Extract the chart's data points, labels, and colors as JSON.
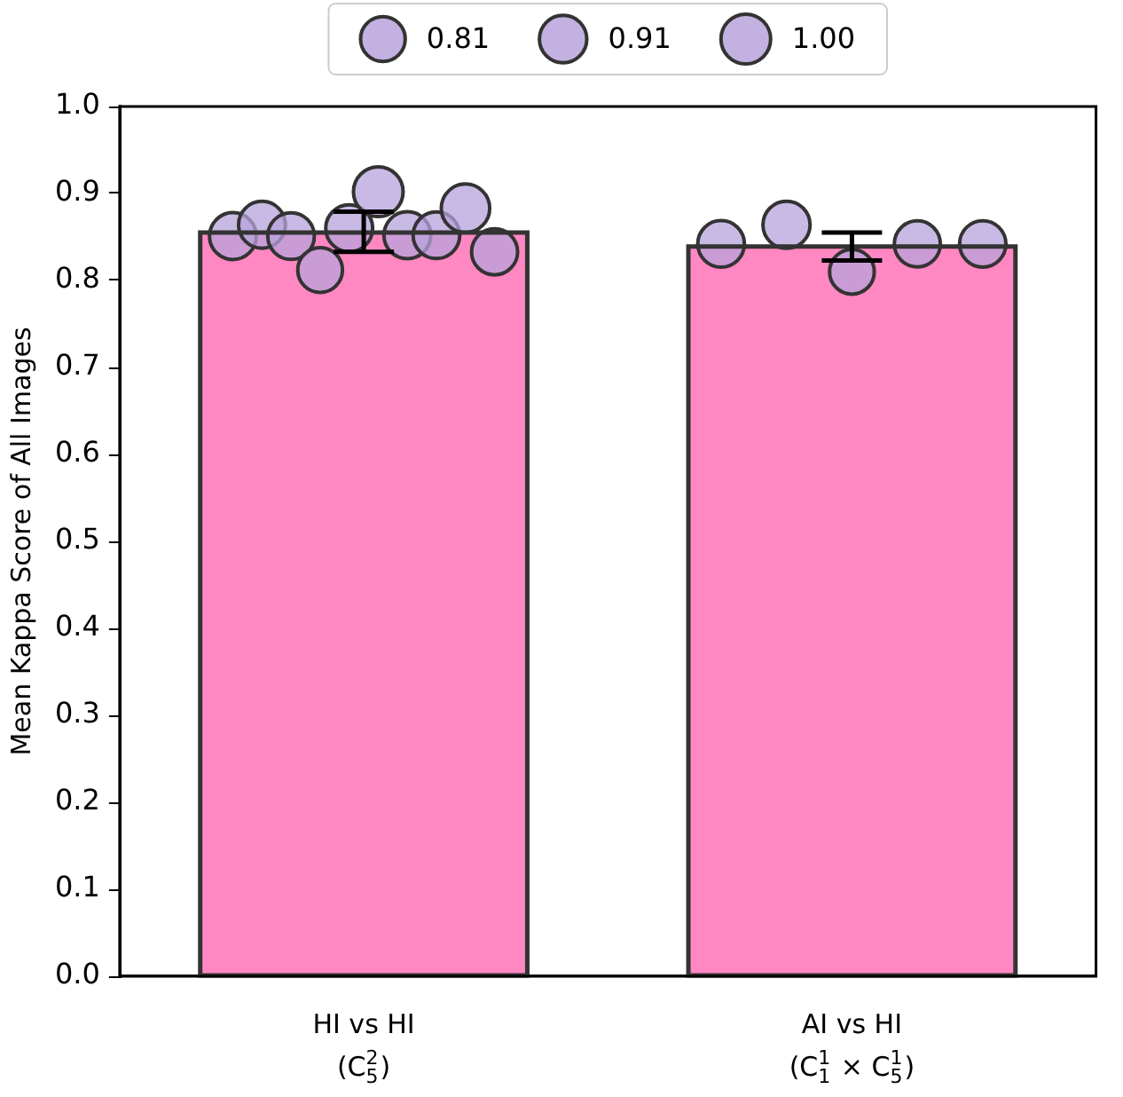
{
  "chart_data": {
    "type": "bar",
    "ylabel": "Mean Kappa Score of All Images",
    "categories": [
      "HI vs HI\n(C$^{2}$$_{5}$)",
      "AI vs HI\n(C$^{1}$$_{1}$ × C$^{1}$$_{5}$)"
    ],
    "values": [
      0.855,
      0.839
    ],
    "color": "#ff88c2",
    "errors": [
      [
        0.833,
        0.879
      ],
      [
        0.823,
        0.855
      ]
    ],
    "ylim": [
      0,
      1
    ],
    "yticks": [
      {
        "value": 0,
        "label": "0.0"
      },
      0.1,
      0.2,
      0.3,
      0.4,
      0.5,
      0.6,
      0.7,
      0.8,
      0.9,
      {
        "value": 1,
        "label": "1.0"
      }
    ],
    "grid": false,
    "series": [
      {
        "type": "scatter",
        "color": "#b7a3dc",
        "marker": "circle",
        "x": [
          "HI vs HI\n(C$^{2}$$_{5}$)",
          "HI vs HI\n(C$^{2}$$_{5}$)",
          "HI vs HI\n(C$^{2}$$_{5}$)",
          "HI vs HI\n(C$^{2}$$_{5}$)",
          "HI vs HI\n(C$^{2}$$_{5}$)",
          "HI vs HI\n(C$^{2}$$_{5}$)",
          "HI vs HI\n(C$^{2}$$_{5}$)",
          "HI vs HI\n(C$^{2}$$_{5}$)",
          "HI vs HI\n(C$^{2}$$_{5}$)",
          "HI vs HI\n(C$^{2}$$_{5}$)",
          "AI vs HI\n(C$^{1}$$_{1}$ × C$^{1}$$_{5}$)",
          "AI vs HI\n(C$^{1}$$_{1}$ × C$^{1}$$_{5}$)",
          "AI vs HI\n(C$^{1}$$_{1}$ × C$^{1}$$_{5}$)",
          "AI vs HI\n(C$^{1}$$_{1}$ × C$^{1}$$_{5}$)",
          "AI vs HI\n(C$^{1}$$_{1}$ × C$^{1}$$_{5}$)"
        ],
        "values": [
          0.851,
          0.864,
          0.851,
          0.812,
          0.86,
          0.902,
          0.852,
          0.852,
          0.883,
          0.833,
          0.842,
          0.864,
          0.81,
          0.842,
          0.842
        ],
        "sizes": [
          0.89,
          0.89,
          0.88,
          0.81,
          0.89,
          1.0,
          0.89,
          0.88,
          0.95,
          0.86,
          0.88,
          0.9,
          0.81,
          0.86,
          0.87
        ]
      }
    ],
    "size_legend": [
      {
        "value": 0.81,
        "label": "0.81"
      },
      {
        "value": 0.91,
        "label": "0.91"
      },
      {
        "value": 1.0,
        "label": "1.00"
      }
    ]
  }
}
